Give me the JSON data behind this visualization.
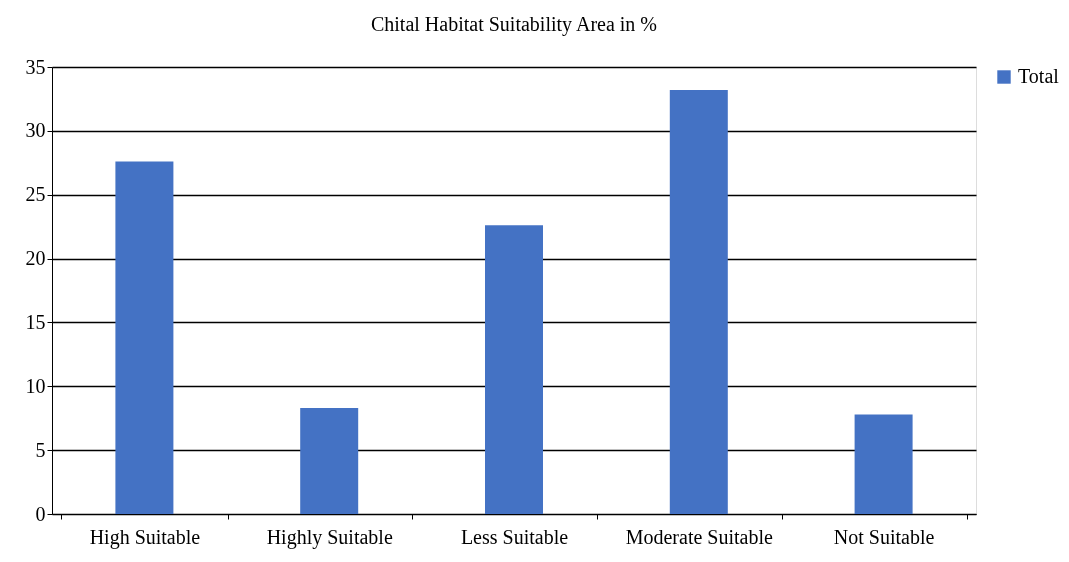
{
  "chart_data": {
    "type": "bar",
    "title": "Chital Habitat Suitability Area in %",
    "categories": [
      "High Suitable",
      "Highly Suitable",
      "Less Suitable",
      "Moderate Suitable",
      "Not Suitable"
    ],
    "series": [
      {
        "name": "Total",
        "color": "#4472c4",
        "values": [
          27.6,
          8.3,
          22.6,
          33.2,
          7.8
        ]
      }
    ],
    "ylim": [
      0,
      35
    ],
    "yticks": [
      0,
      5,
      10,
      15,
      20,
      25,
      30,
      35
    ],
    "grid": "y",
    "legend": "right"
  }
}
